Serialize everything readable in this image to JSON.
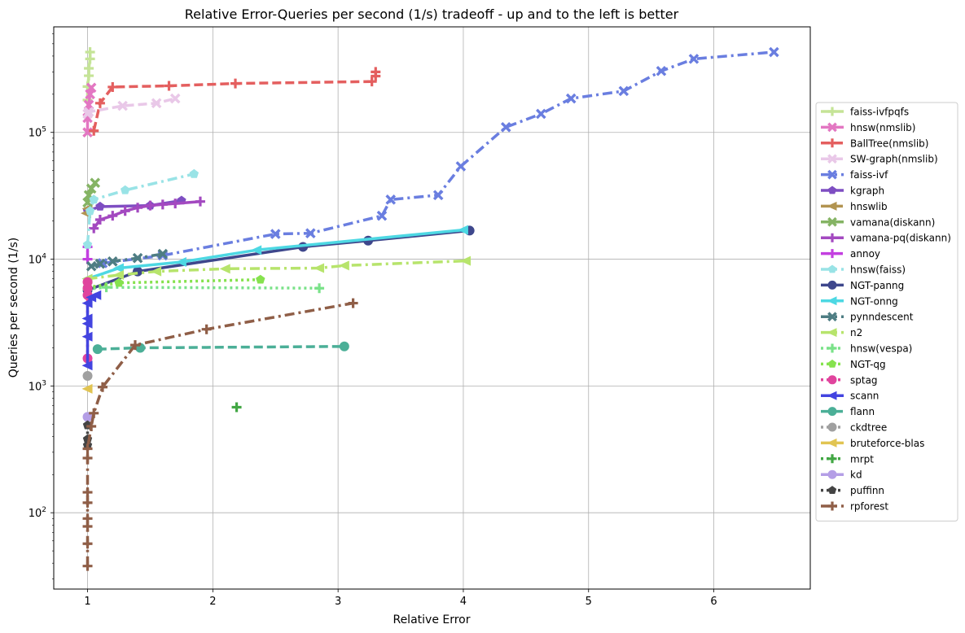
{
  "chart_data": {
    "type": "line",
    "title": "Relative Error-Queries per second (1/s) tradeoff - up and to the left is better",
    "xlabel": "Relative Error",
    "ylabel": "Queries per second (1/s)",
    "xlim": [
      0.73,
      6.77
    ],
    "ylim": [
      25,
      680000
    ],
    "yscale": "log",
    "x_ticks": [
      1,
      2,
      3,
      4,
      5,
      6
    ],
    "x_tick_labels": [
      "1",
      "2",
      "3",
      "4",
      "5",
      "6"
    ],
    "y_ticks": [
      100,
      1000,
      10000,
      100000
    ],
    "y_tick_labels": [
      "10^2",
      "10^3",
      "10^4",
      "10^5"
    ],
    "grid": true,
    "legend_position": "right",
    "series": [
      {
        "name": "faiss-ivfpqfs",
        "color": "#c5e497",
        "marker": "plus",
        "dash": "solid",
        "x": [
          1.0,
          1.0,
          1.01,
          1.01,
          1.02,
          1.02
        ],
        "y": [
          180000,
          230000,
          280000,
          320000,
          380000,
          430000
        ]
      },
      {
        "name": "hnsw(nmslib)",
        "color": "#e377c2",
        "marker": "x",
        "dash": "solid",
        "x": [
          1.0,
          1.0,
          1.01,
          1.02,
          1.03
        ],
        "y": [
          100000,
          130000,
          165000,
          200000,
          225000
        ]
      },
      {
        "name": "BallTree(nmslib)",
        "color": "#e45f5f",
        "marker": "plus",
        "dash": "dashed",
        "x": [
          1.05,
          1.1,
          1.2,
          1.65,
          2.18,
          3.27,
          3.3,
          3.3
        ],
        "y": [
          103000,
          170000,
          228000,
          233000,
          243000,
          252000,
          278000,
          300000
        ]
      },
      {
        "name": "SW-graph(nmslib)",
        "color": "#e9c8e8",
        "marker": "x",
        "dash": "dashed",
        "x": [
          1.0,
          1.01,
          1.28,
          1.55,
          1.7
        ],
        "y": [
          140000,
          145000,
          162000,
          170000,
          185000
        ]
      },
      {
        "name": "faiss-ivf",
        "color": "#6a7ee0",
        "marker": "x",
        "dash": "dashdot",
        "x": [
          1.12,
          1.6,
          2.5,
          2.78,
          3.35,
          3.42,
          3.8,
          3.98,
          4.34,
          4.62,
          4.86,
          5.28,
          5.58,
          5.84,
          6.48
        ],
        "y": [
          9300,
          10700,
          15800,
          16000,
          22000,
          29500,
          32000,
          54000,
          110000,
          140000,
          185000,
          212000,
          305000,
          380000,
          430000
        ]
      },
      {
        "name": "kgraph",
        "color": "#7e4ec2",
        "marker": "pentagon",
        "dash": "solid",
        "x": [
          1.0,
          1.1,
          1.5,
          1.75
        ],
        "y": [
          24000,
          26000,
          26500,
          29000
        ]
      },
      {
        "name": "hnswlib",
        "color": "#b29451",
        "marker": "triangle-left",
        "dash": "dashed",
        "x": [
          0.99,
          1.0
        ],
        "y": [
          23000,
          25000
        ]
      },
      {
        "name": "vamana(diskann)",
        "color": "#85b464",
        "marker": "x",
        "dash": "solid",
        "x": [
          1.0,
          1.01,
          1.03,
          1.06
        ],
        "y": [
          28000,
          32000,
          36000,
          40000
        ]
      },
      {
        "name": "vamana-pq(diskann)",
        "color": "#a349c0",
        "marker": "plus",
        "dash": "solid",
        "x": [
          1.05,
          1.1,
          1.2,
          1.3,
          1.4,
          1.5,
          1.6,
          1.7,
          1.9
        ],
        "y": [
          17500,
          20500,
          22000,
          24000,
          25500,
          26500,
          27000,
          27500,
          28500
        ]
      },
      {
        "name": "annoy",
        "color": "#c33fe0",
        "marker": "plus",
        "dash": "dashed",
        "x": [
          1.0,
          1.0
        ],
        "y": [
          10000,
          12500
        ]
      },
      {
        "name": "hnsw(faiss)",
        "color": "#99e3e6",
        "marker": "pentagon",
        "dash": "dashdot",
        "x": [
          1.0,
          1.02,
          1.05,
          1.3,
          1.85
        ],
        "y": [
          13000,
          24000,
          29500,
          35000,
          47000
        ]
      },
      {
        "name": "NGT-panng",
        "color": "#3e478c",
        "marker": "circle",
        "dash": "solid",
        "x": [
          1.0,
          1.4,
          2.72,
          3.24,
          4.05
        ],
        "y": [
          5700,
          8000,
          12500,
          14000,
          16800
        ]
      },
      {
        "name": "NGT-onng",
        "color": "#4dd8e3",
        "marker": "triangle-left",
        "dash": "solid",
        "x": [
          1.0,
          1.25,
          1.75,
          2.35,
          4.0
        ],
        "y": [
          7000,
          8500,
          9500,
          11800,
          17000
        ]
      },
      {
        "name": "pynndescent",
        "color": "#4e7d83",
        "marker": "x",
        "dash": "dashdot",
        "x": [
          1.03,
          1.1,
          1.2,
          1.4,
          1.6
        ],
        "y": [
          8800,
          9200,
          9600,
          10200,
          11000
        ]
      },
      {
        "name": "n2",
        "color": "#b7e46c",
        "marker": "triangle-left",
        "dash": "dashdot",
        "x": [
          1.0,
          1.25,
          1.55,
          2.1,
          2.85,
          3.05,
          4.02
        ],
        "y": [
          7000,
          7500,
          8000,
          8400,
          8500,
          8900,
          9700
        ]
      },
      {
        "name": "hnsw(vespa)",
        "color": "#7ae289",
        "marker": "plus",
        "dash": "dotted",
        "x": [
          1.0,
          1.15,
          2.85
        ],
        "y": [
          5800,
          6000,
          5900
        ]
      },
      {
        "name": "NGT-qg",
        "color": "#86e24e",
        "marker": "pentagon",
        "dash": "dotted",
        "x": [
          1.0,
          1.25,
          2.38
        ],
        "y": [
          6000,
          6500,
          6900
        ]
      },
      {
        "name": "sptag",
        "color": "#e0449d",
        "marker": "circle",
        "dash": "dotted",
        "x": [
          1.0,
          1.0,
          1.0,
          1.0
        ],
        "y": [
          1650,
          5200,
          5900,
          6600
        ]
      },
      {
        "name": "scann",
        "color": "#4344e0",
        "marker": "triangle-left",
        "dash": "solid",
        "x": [
          1.0,
          1.0,
          1.0,
          1.0,
          1.0,
          1.03,
          1.07
        ],
        "y": [
          1450,
          2450,
          3100,
          3400,
          4500,
          5000,
          5200
        ]
      },
      {
        "name": "flann",
        "color": "#4baf97",
        "marker": "circle",
        "dash": "dashed",
        "x": [
          1.08,
          1.42,
          3.05
        ],
        "y": [
          1950,
          2000,
          2050
        ]
      },
      {
        "name": "ckdtree",
        "color": "#a0a0a0",
        "marker": "circle",
        "dash": "dotted",
        "x": [
          1.0
        ],
        "y": [
          1200
        ]
      },
      {
        "name": "bruteforce-blas",
        "color": "#e1c452",
        "marker": "triangle-left",
        "dash": "solid",
        "x": [
          1.0
        ],
        "y": [
          950
        ]
      },
      {
        "name": "mrpt",
        "color": "#42a744",
        "marker": "plus",
        "dash": "dotted",
        "x": [
          2.19
        ],
        "y": [
          680
        ]
      },
      {
        "name": "kd",
        "color": "#b49ee6",
        "marker": "circle",
        "dash": "solid",
        "x": [
          1.0
        ],
        "y": [
          570
        ]
      },
      {
        "name": "puffinn",
        "color": "#444444",
        "marker": "pentagon",
        "dash": "dotted",
        "x": [
          1.0,
          1.0,
          1.0
        ],
        "y": [
          340,
          380,
          490
        ]
      },
      {
        "name": "rpforest",
        "color": "#8f5e47",
        "marker": "plus",
        "dash": "dashdot",
        "x": [
          1.0,
          1.0,
          1.0,
          1.0,
          1.0,
          1.0,
          1.0,
          1.0,
          1.03,
          1.05,
          1.12,
          1.38,
          1.95,
          3.12
        ],
        "y": [
          38,
          57,
          78,
          90,
          120,
          145,
          270,
          320,
          480,
          610,
          980,
          2100,
          2800,
          4500
        ]
      }
    ]
  }
}
